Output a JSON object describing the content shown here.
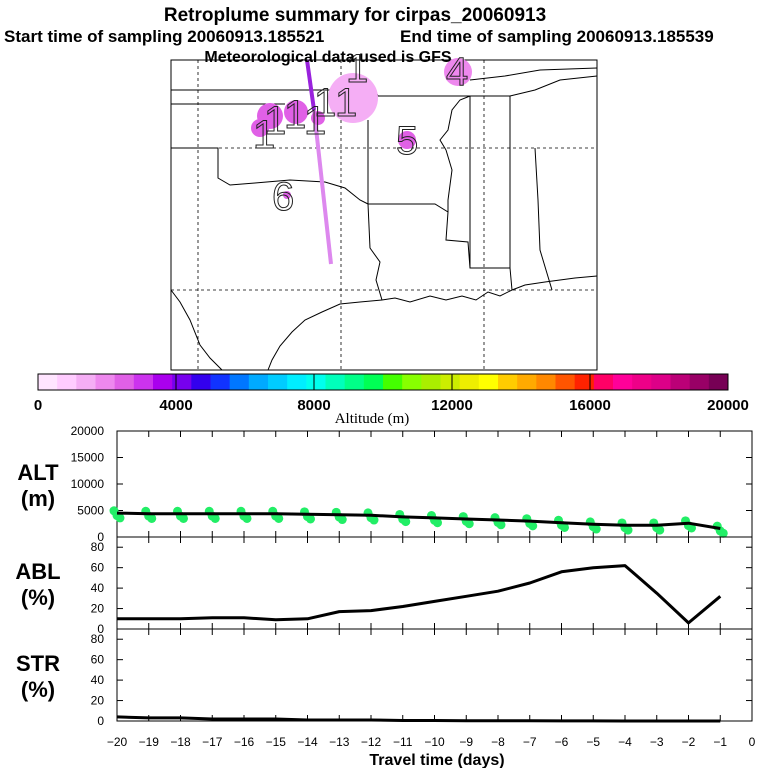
{
  "header": {
    "title": "Retroplume summary for cirpas_20060913",
    "start_label": "Start time of sampling 20060913.185521",
    "end_label": "End time of sampling 20060913.185539",
    "met_label": "Meteorological data used is GFS"
  },
  "map": {
    "labels": [
      {
        "text": "1"
      },
      {
        "text": "1"
      },
      {
        "text": "1"
      },
      {
        "text": "1"
      },
      {
        "text": "1"
      },
      {
        "text": "1"
      },
      {
        "text": "1"
      },
      {
        "text": "4"
      },
      {
        "text": "5"
      },
      {
        "text": "6"
      }
    ]
  },
  "colorbar": {
    "ticks": [
      "0",
      "4000",
      "8000",
      "12000",
      "16000",
      "20000"
    ],
    "label": "Altitude (m)",
    "colors": [
      "#ffe5ff",
      "#ffccff",
      "#f5aef5",
      "#ee88ee",
      "#e060e6",
      "#cc33ee",
      "#aa00ee",
      "#7700ee",
      "#3300ee",
      "#1133ff",
      "#0077ff",
      "#00aaff",
      "#00ccff",
      "#00eeff",
      "#00ffee",
      "#00ffbb",
      "#00ff88",
      "#00ff55",
      "#44ff00",
      "#88ff00",
      "#aaee00",
      "#ccee00",
      "#eeee00",
      "#ffff00",
      "#ffcc00",
      "#ffaa00",
      "#ff8800",
      "#ff5500",
      "#ff2200",
      "#ff0066",
      "#ff0099",
      "#ee0088",
      "#dd0088",
      "#bb0077",
      "#990066",
      "#770055"
    ]
  },
  "chart_data": [
    {
      "type": "line",
      "title": "ALT",
      "ylabel": "ALT (m)",
      "ylabel_line1": "ALT",
      "ylabel_line2": "(m)",
      "ylim": [
        0,
        20000
      ],
      "yticks": [
        "20000",
        "15000",
        "10000",
        "5000",
        "0"
      ],
      "x": [
        -20,
        -19,
        -18,
        -17,
        -16,
        -15,
        -14,
        -13,
        -12,
        -11,
        -10,
        -9,
        -8,
        -7,
        -6,
        -5,
        -4,
        -3,
        -2,
        -1
      ],
      "values": [
        4500,
        4400,
        4400,
        4400,
        4400,
        4400,
        4300,
        4200,
        4100,
        3800,
        3600,
        3400,
        3200,
        3000,
        2700,
        2400,
        2200,
        2200,
        2600,
        1600
      ],
      "scatter_color": "#22ee66"
    },
    {
      "type": "line",
      "title": "ABL",
      "ylabel": "ABL (%)",
      "ylabel_line1": "ABL",
      "ylabel_line2": "(%)",
      "ylim": [
        0,
        90
      ],
      "yticks": [
        "80",
        "60",
        "40",
        "20",
        "0"
      ],
      "x": [
        -20,
        -19,
        -18,
        -17,
        -16,
        -15,
        -14,
        -13,
        -12,
        -11,
        -10,
        -9,
        -8,
        -7,
        -6,
        -5,
        -4,
        -3,
        -2,
        -1
      ],
      "values": [
        10,
        10,
        10,
        11,
        11,
        9,
        10,
        17,
        18,
        22,
        27,
        32,
        37,
        45,
        56,
        60,
        62,
        35,
        6,
        32
      ]
    },
    {
      "type": "line",
      "title": "STR",
      "ylabel": "STR (%)",
      "ylabel_line1": "STR",
      "ylabel_line2": "(%)",
      "ylim": [
        0,
        90
      ],
      "yticks": [
        "80",
        "60",
        "40",
        "20",
        "0"
      ],
      "x": [
        -20,
        -19,
        -18,
        -17,
        -16,
        -15,
        -14,
        -13,
        -12,
        -11,
        -10,
        -9,
        -8,
        -7,
        -6,
        -5,
        -4,
        -3,
        -2,
        -1
      ],
      "values": [
        4,
        3,
        3,
        2,
        2,
        2,
        1,
        1,
        1,
        0.5,
        0.5,
        0.3,
        0.2,
        0.2,
        0.1,
        0.1,
        0,
        0,
        0,
        0
      ]
    }
  ],
  "xaxis": {
    "label": "Travel time (days)",
    "xlim": [
      -20,
      0
    ],
    "ticks": [
      "−20",
      "−19",
      "−18",
      "−17",
      "−16",
      "−15",
      "−14",
      "−13",
      "−12",
      "−11",
      "−10",
      "−9",
      "−8",
      "−7",
      "−6",
      "−5",
      "−4",
      "−3",
      "−2",
      "−1",
      "0"
    ]
  }
}
